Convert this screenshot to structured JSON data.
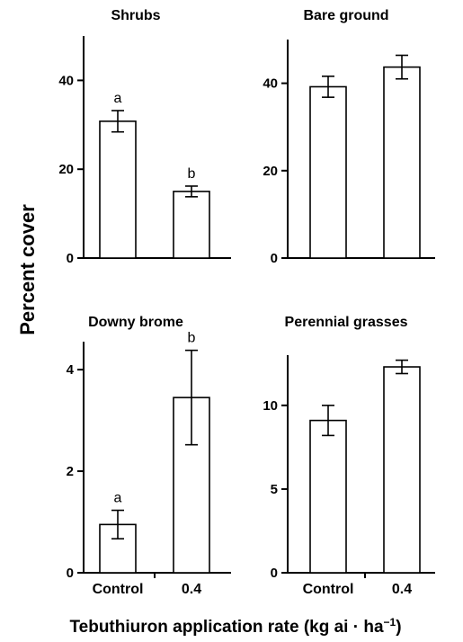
{
  "chart_data": [
    {
      "type": "bar",
      "title": "Shrubs",
      "categories": [
        "Control",
        "0.4"
      ],
      "values": [
        30.8,
        15.0
      ],
      "errors": [
        2.4,
        1.2
      ],
      "letters": [
        "a",
        "b"
      ],
      "ylim": [
        0,
        50
      ],
      "yticks": [
        0,
        20,
        40
      ],
      "show_x_labels": false
    },
    {
      "type": "bar",
      "title": "Bare ground",
      "categories": [
        "Control",
        "0.4"
      ],
      "values": [
        39.2,
        43.7
      ],
      "errors": [
        2.4,
        2.7
      ],
      "letters": [
        "",
        ""
      ],
      "ylim": [
        0,
        50
      ],
      "yticks": [
        0,
        20,
        40
      ],
      "show_x_labels": false
    },
    {
      "type": "bar",
      "title": "Downy brome",
      "categories": [
        "Control",
        "0.4"
      ],
      "values": [
        0.95,
        3.45
      ],
      "errors": [
        0.28,
        0.93
      ],
      "letters": [
        "a",
        "b"
      ],
      "ylim": [
        0,
        4.55
      ],
      "yticks": [
        0,
        2,
        4
      ],
      "show_x_labels": true
    },
    {
      "type": "bar",
      "title": "Perennial grasses",
      "categories": [
        "Control",
        "0.4"
      ],
      "values": [
        9.1,
        12.3
      ],
      "errors": [
        0.9,
        0.4
      ],
      "letters": [
        "",
        ""
      ],
      "ylim": [
        0,
        13
      ],
      "yticks": [
        0,
        5,
        10
      ],
      "show_x_labels": true
    }
  ],
  "ylabel": "Percent cover",
  "xlabel": "Tebuthiuron application rate (kg ai · ha",
  "xlabel_sup": "−1",
  "xlabel_close": ")"
}
